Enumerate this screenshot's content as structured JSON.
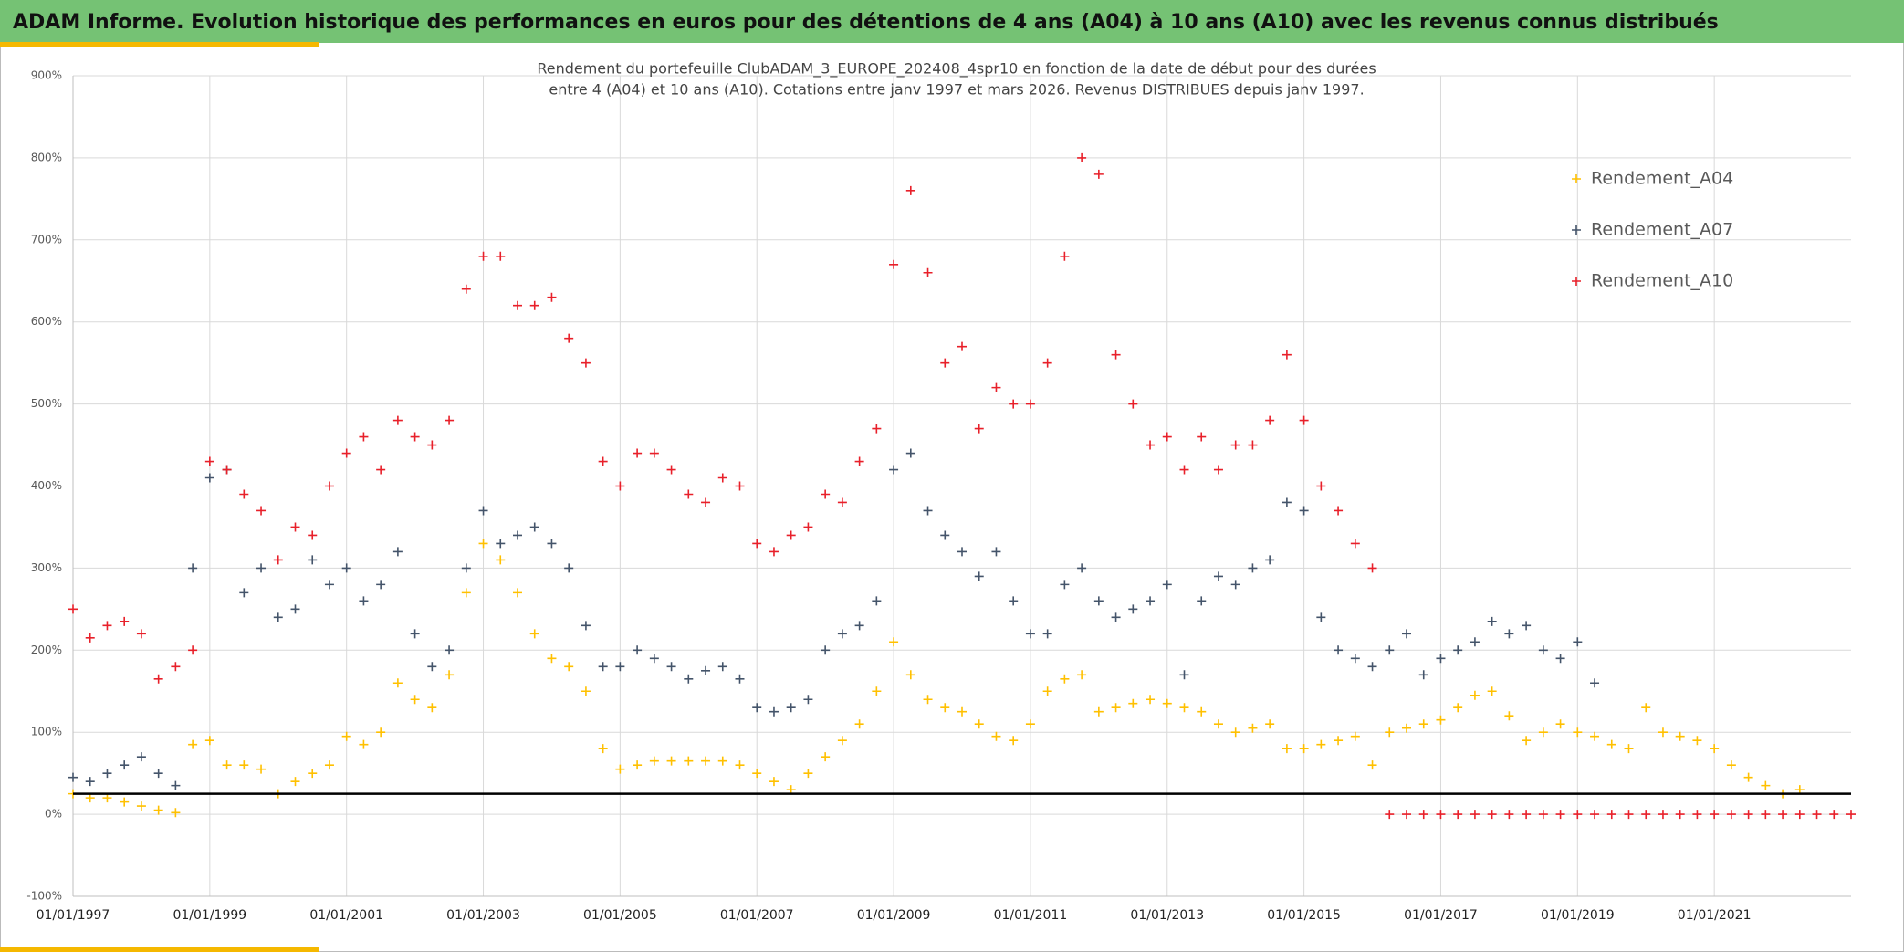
{
  "header": "ADAM Informe. Evolution historique des performances en euros pour des détentions de 4 ans (A04) à 10 ans (A10) avec les revenus connus distribués",
  "chart_data": {
    "type": "scatter",
    "title": [
      "Rendement du portefeuille ClubADAM_3_EUROPE_202408_4spr10  en fonction de la date de début pour des durées",
      "entre 4 (A04) et 10 ans (A10). Cotations entre janv 1997 et mars 2026. Revenus DISTRIBUES depuis janv 1997."
    ],
    "x": [
      "01/01/1997",
      "01/04/1997",
      "01/07/1997",
      "01/10/1997",
      "01/01/1998",
      "01/04/1998",
      "01/07/1998",
      "01/10/1998",
      "01/01/1999",
      "01/04/1999",
      "01/07/1999",
      "01/10/1999",
      "01/01/2000",
      "01/04/2000",
      "01/07/2000",
      "01/10/2000",
      "01/01/2001",
      "01/04/2001",
      "01/07/2001",
      "01/10/2001",
      "01/01/2002",
      "01/04/2002",
      "01/07/2002",
      "01/10/2002",
      "01/01/2003",
      "01/04/2003",
      "01/07/2003",
      "01/10/2003",
      "01/01/2004",
      "01/04/2004",
      "01/07/2004",
      "01/10/2004",
      "01/01/2005",
      "01/04/2005",
      "01/07/2005",
      "01/10/2005",
      "01/01/2006",
      "01/04/2006",
      "01/07/2006",
      "01/10/2006",
      "01/01/2007",
      "01/04/2007",
      "01/07/2007",
      "01/10/2007",
      "01/01/2008",
      "01/04/2008",
      "01/07/2008",
      "01/10/2008",
      "01/01/2009",
      "01/04/2009",
      "01/07/2009",
      "01/10/2009",
      "01/01/2010",
      "01/04/2010",
      "01/07/2010",
      "01/10/2010",
      "01/01/2011",
      "01/04/2011",
      "01/07/2011",
      "01/10/2011",
      "01/01/2012",
      "01/04/2012",
      "01/07/2012",
      "01/10/2012",
      "01/01/2013",
      "01/04/2013",
      "01/07/2013",
      "01/10/2013",
      "01/01/2014",
      "01/04/2014",
      "01/07/2014",
      "01/10/2014",
      "01/01/2015",
      "01/04/2015",
      "01/07/2015",
      "01/10/2015",
      "01/01/2016",
      "01/04/2016",
      "01/07/2016",
      "01/10/2016",
      "01/01/2017",
      "01/04/2017",
      "01/07/2017",
      "01/10/2017",
      "01/01/2018",
      "01/04/2018",
      "01/07/2018",
      "01/10/2018",
      "01/01/2019",
      "01/04/2019",
      "01/07/2019",
      "01/10/2019",
      "01/01/2020",
      "01/04/2020",
      "01/07/2020",
      "01/10/2020",
      "01/01/2021",
      "01/04/2021",
      "01/07/2021",
      "01/10/2021",
      "01/01/2022",
      "01/04/2022",
      "01/07/2022",
      "01/10/2022",
      "01/01/2023"
    ],
    "series": [
      {
        "name": "Rendement_A04",
        "color": "#FFC000",
        "values": [
          25,
          20,
          20,
          15,
          10,
          5,
          2,
          85,
          90,
          60,
          60,
          55,
          25,
          40,
          50,
          60,
          95,
          85,
          100,
          160,
          140,
          130,
          170,
          270,
          330,
          310,
          270,
          220,
          190,
          180,
          150,
          80,
          55,
          60,
          65,
          65,
          65,
          65,
          65,
          60,
          50,
          40,
          30,
          50,
          70,
          90,
          110,
          150,
          210,
          170,
          140,
          130,
          125,
          110,
          95,
          90,
          110,
          150,
          165,
          170,
          125,
          130,
          135,
          140,
          135,
          130,
          125,
          110,
          100,
          105,
          110,
          80,
          80,
          85,
          90,
          95,
          60,
          100,
          105,
          110,
          115,
          130,
          145,
          150,
          120,
          90,
          100,
          110,
          100,
          95,
          85,
          80,
          130,
          100,
          95,
          90,
          80,
          60,
          45,
          35,
          25,
          30,
          null,
          null,
          null
        ]
      },
      {
        "name": "Rendement_A07",
        "color": "#44546A",
        "values": [
          45,
          40,
          50,
          60,
          70,
          50,
          35,
          300,
          410,
          420,
          270,
          300,
          240,
          250,
          310,
          280,
          300,
          260,
          280,
          320,
          220,
          180,
          200,
          300,
          370,
          330,
          340,
          350,
          330,
          300,
          230,
          180,
          180,
          200,
          190,
          180,
          165,
          175,
          180,
          165,
          130,
          125,
          130,
          140,
          200,
          220,
          230,
          260,
          420,
          440,
          370,
          340,
          320,
          290,
          320,
          260,
          220,
          220,
          280,
          300,
          260,
          240,
          250,
          260,
          280,
          170,
          260,
          290,
          280,
          300,
          310,
          380,
          370,
          240,
          200,
          190,
          180,
          200,
          220,
          170,
          190,
          200,
          210,
          235,
          220,
          230,
          200,
          190,
          210,
          160,
          null,
          null,
          null,
          null,
          null,
          null,
          null,
          null,
          null,
          null,
          null,
          null,
          null,
          null,
          null
        ]
      },
      {
        "name": "Rendement_A10",
        "color": "#E8202A",
        "values": [
          250,
          215,
          230,
          235,
          220,
          165,
          180,
          200,
          430,
          420,
          390,
          370,
          310,
          350,
          340,
          400,
          440,
          460,
          420,
          480,
          460,
          450,
          480,
          640,
          680,
          680,
          620,
          620,
          630,
          580,
          550,
          430,
          400,
          440,
          440,
          420,
          390,
          380,
          410,
          400,
          330,
          320,
          340,
          350,
          390,
          380,
          430,
          470,
          670,
          760,
          660,
          550,
          570,
          470,
          520,
          500,
          500,
          550,
          680,
          800,
          780,
          560,
          500,
          450,
          460,
          420,
          460,
          420,
          450,
          450,
          480,
          560,
          480,
          400,
          370,
          330,
          300,
          0,
          0,
          0,
          0,
          0,
          0,
          0,
          0,
          0,
          0,
          0,
          0,
          0,
          0,
          0,
          0,
          0,
          0,
          0,
          0,
          0,
          0,
          0,
          0,
          0,
          0,
          0,
          0
        ]
      }
    ],
    "xlim": [
      "01/01/1997",
      "01/01/2023"
    ],
    "xticks": [
      "01/01/1997",
      "01/01/1999",
      "01/01/2001",
      "01/01/2003",
      "01/01/2005",
      "01/01/2007",
      "01/01/2009",
      "01/01/2011",
      "01/01/2013",
      "01/01/2015",
      "01/01/2017",
      "01/01/2019",
      "01/01/2021"
    ],
    "ylim": [
      -100,
      900
    ],
    "yticks": [
      {
        "value": -100,
        "label": "-100%"
      },
      {
        "value": 0,
        "label": "0%"
      },
      {
        "value": 100,
        "label": "100%"
      },
      {
        "value": 200,
        "label": "200%"
      },
      {
        "value": 300,
        "label": "300%"
      },
      {
        "value": 400,
        "label": "400%"
      },
      {
        "value": 500,
        "label": "500%"
      },
      {
        "value": 600,
        "label": "600%"
      },
      {
        "value": 700,
        "label": "700%"
      },
      {
        "value": 800,
        "label": "800%"
      },
      {
        "value": 900,
        "label": "900%"
      }
    ],
    "hline": 25,
    "grid": true,
    "legend": "top-right"
  }
}
